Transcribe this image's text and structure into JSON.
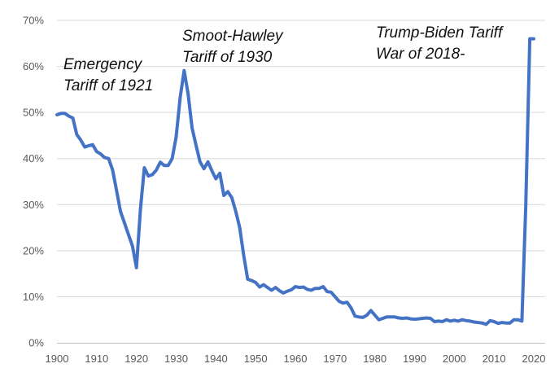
{
  "chart_data": {
    "type": "line",
    "title": "",
    "xlabel": "",
    "ylabel": "",
    "xlim": [
      1900,
      2020
    ],
    "ylim": [
      0,
      70
    ],
    "grid": true,
    "colors": {
      "series": "#4472c4",
      "grid": "#d9d9d9",
      "axis": "#bfbfbf",
      "text": "#595959"
    },
    "x_ticks": [
      {
        "value": 1900,
        "label": "1900"
      },
      {
        "value": 1910,
        "label": "1910"
      },
      {
        "value": 1920,
        "label": "1920"
      },
      {
        "value": 1930,
        "label": "1930"
      },
      {
        "value": 1940,
        "label": "1940"
      },
      {
        "value": 1950,
        "label": "1950"
      },
      {
        "value": 1960,
        "label": "1960"
      },
      {
        "value": 1970,
        "label": "1970"
      },
      {
        "value": 1980,
        "label": "1980"
      },
      {
        "value": 1990,
        "label": "1990"
      },
      {
        "value": 2000,
        "label": "2000"
      },
      {
        "value": 2010,
        "label": "2010"
      },
      {
        "value": 2020,
        "label": "2020"
      }
    ],
    "y_ticks": [
      {
        "value": 0,
        "label": "0%"
      },
      {
        "value": 10,
        "label": "10%"
      },
      {
        "value": 20,
        "label": "20%"
      },
      {
        "value": 30,
        "label": "30%"
      },
      {
        "value": 40,
        "label": "40%"
      },
      {
        "value": 50,
        "label": "50%"
      },
      {
        "value": 60,
        "label": "60%"
      },
      {
        "value": 70,
        "label": "70%"
      }
    ],
    "series": [
      {
        "name": "",
        "points": [
          [
            1900,
            49.5
          ],
          [
            1901,
            49.8
          ],
          [
            1902,
            49.8
          ],
          [
            1903,
            49.2
          ],
          [
            1904,
            48.8
          ],
          [
            1905,
            45.2
          ],
          [
            1906,
            44.0
          ],
          [
            1907,
            42.5
          ],
          [
            1908,
            42.8
          ],
          [
            1909,
            43.0
          ],
          [
            1910,
            41.5
          ],
          [
            1911,
            41.0
          ],
          [
            1912,
            40.2
          ],
          [
            1913,
            40.0
          ],
          [
            1914,
            37.5
          ],
          [
            1915,
            33.0
          ],
          [
            1916,
            28.5
          ],
          [
            1917,
            26.0
          ],
          [
            1918,
            23.5
          ],
          [
            1919,
            21.0
          ],
          [
            1920,
            16.3
          ],
          [
            1921,
            29.0
          ],
          [
            1922,
            38.0
          ],
          [
            1923,
            36.2
          ],
          [
            1924,
            36.5
          ],
          [
            1925,
            37.5
          ],
          [
            1926,
            39.2
          ],
          [
            1927,
            38.5
          ],
          [
            1928,
            38.5
          ],
          [
            1929,
            40.0
          ],
          [
            1930,
            44.7
          ],
          [
            1931,
            53.2
          ],
          [
            1932,
            59.1
          ],
          [
            1933,
            54.0
          ],
          [
            1934,
            46.7
          ],
          [
            1935,
            42.9
          ],
          [
            1936,
            39.3
          ],
          [
            1937,
            37.8
          ],
          [
            1938,
            39.3
          ],
          [
            1939,
            37.3
          ],
          [
            1940,
            35.6
          ],
          [
            1941,
            36.8
          ],
          [
            1942,
            32.0
          ],
          [
            1943,
            32.8
          ],
          [
            1944,
            31.5
          ],
          [
            1945,
            28.5
          ],
          [
            1946,
            25.0
          ],
          [
            1947,
            19.0
          ],
          [
            1948,
            13.8
          ],
          [
            1949,
            13.5
          ],
          [
            1950,
            13.1
          ],
          [
            1951,
            12.1
          ],
          [
            1952,
            12.6
          ],
          [
            1953,
            12.0
          ],
          [
            1954,
            11.4
          ],
          [
            1955,
            12.0
          ],
          [
            1956,
            11.3
          ],
          [
            1957,
            10.8
          ],
          [
            1958,
            11.2
          ],
          [
            1959,
            11.5
          ],
          [
            1960,
            12.2
          ],
          [
            1961,
            12.0
          ],
          [
            1962,
            12.1
          ],
          [
            1963,
            11.6
          ],
          [
            1964,
            11.4
          ],
          [
            1965,
            11.8
          ],
          [
            1966,
            11.8
          ],
          [
            1967,
            12.2
          ],
          [
            1968,
            11.1
          ],
          [
            1969,
            11.0
          ],
          [
            1970,
            10.0
          ],
          [
            1971,
            9.0
          ],
          [
            1972,
            8.6
          ],
          [
            1973,
            8.8
          ],
          [
            1974,
            7.6
          ],
          [
            1975,
            5.8
          ],
          [
            1976,
            5.6
          ],
          [
            1977,
            5.5
          ],
          [
            1978,
            6.0
          ],
          [
            1979,
            7.0
          ],
          [
            1980,
            6.0
          ],
          [
            1981,
            5.0
          ],
          [
            1982,
            5.3
          ],
          [
            1983,
            5.6
          ],
          [
            1984,
            5.6
          ],
          [
            1985,
            5.6
          ],
          [
            1986,
            5.4
          ],
          [
            1987,
            5.3
          ],
          [
            1988,
            5.4
          ],
          [
            1989,
            5.2
          ],
          [
            1990,
            5.1
          ],
          [
            1991,
            5.2
          ],
          [
            1992,
            5.3
          ],
          [
            1993,
            5.4
          ],
          [
            1994,
            5.3
          ],
          [
            1995,
            4.6
          ],
          [
            1996,
            4.7
          ],
          [
            1997,
            4.6
          ],
          [
            1998,
            5.0
          ],
          [
            1999,
            4.7
          ],
          [
            2000,
            4.9
          ],
          [
            2001,
            4.7
          ],
          [
            2002,
            5.0
          ],
          [
            2003,
            4.8
          ],
          [
            2004,
            4.7
          ],
          [
            2005,
            4.5
          ],
          [
            2006,
            4.4
          ],
          [
            2007,
            4.3
          ],
          [
            2008,
            4.0
          ],
          [
            2009,
            4.8
          ],
          [
            2010,
            4.6
          ],
          [
            2011,
            4.2
          ],
          [
            2012,
            4.4
          ],
          [
            2013,
            4.3
          ],
          [
            2014,
            4.3
          ],
          [
            2015,
            5.0
          ],
          [
            2016,
            5.0
          ],
          [
            2017,
            4.7
          ],
          [
            2018,
            30.0
          ],
          [
            2019,
            66.0
          ],
          [
            2020,
            66.0
          ]
        ]
      }
    ],
    "annotations": [
      {
        "lines": [
          "Emergency",
          "Tariff of 1921"
        ]
      },
      {
        "lines": [
          "Smoot-Hawley",
          "Tariff of 1930"
        ]
      },
      {
        "lines": [
          "Trump-Biden Tariff",
          "War of 2018-"
        ]
      }
    ]
  }
}
